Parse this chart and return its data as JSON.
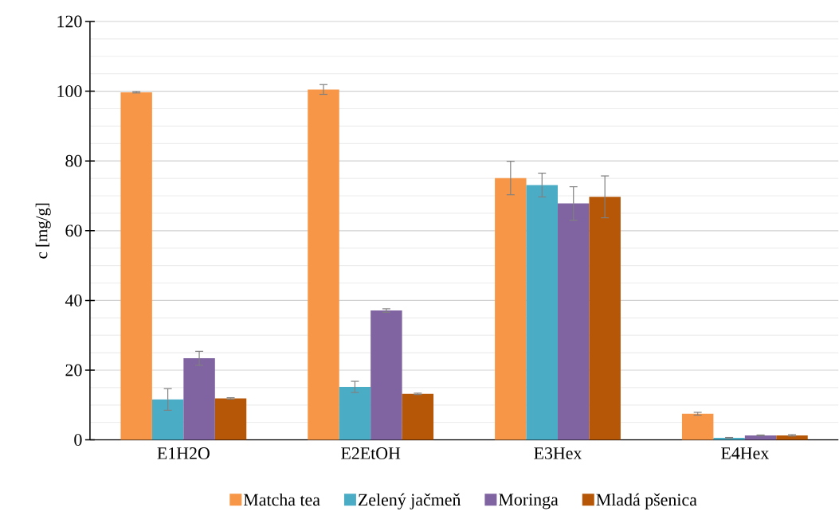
{
  "chart_data": {
    "type": "bar",
    "ylabel": "c [mg/g]",
    "categories": [
      "E1H2O",
      "E2EtOH",
      "E3Hex",
      "E4Hex"
    ],
    "series": [
      {
        "name": "Matcha tea",
        "color": "#f79646",
        "values": [
          99.7,
          100.5,
          75.1,
          7.5
        ],
        "errors": [
          0.2,
          1.4,
          4.8,
          0.4
        ]
      },
      {
        "name": "Zelený jačmeň",
        "color": "#4bacc6",
        "values": [
          11.6,
          15.2,
          73.1,
          0.6
        ],
        "errors": [
          3.1,
          1.6,
          3.4,
          0.1
        ]
      },
      {
        "name": "Moringa",
        "color": "#8064a2",
        "values": [
          23.4,
          37.1,
          67.8,
          1.3
        ],
        "errors": [
          2.0,
          0.5,
          4.8,
          0.1
        ]
      },
      {
        "name": "Mladá pšenica",
        "color": "#b65708",
        "values": [
          11.9,
          13.2,
          69.7,
          1.3
        ],
        "errors": [
          0.2,
          0.2,
          6.0,
          0.2
        ]
      }
    ],
    "ylim": [
      0,
      120
    ],
    "yticks": [
      0,
      20,
      40,
      60,
      80,
      100,
      120
    ],
    "grid": "y",
    "legend": "bottom"
  }
}
